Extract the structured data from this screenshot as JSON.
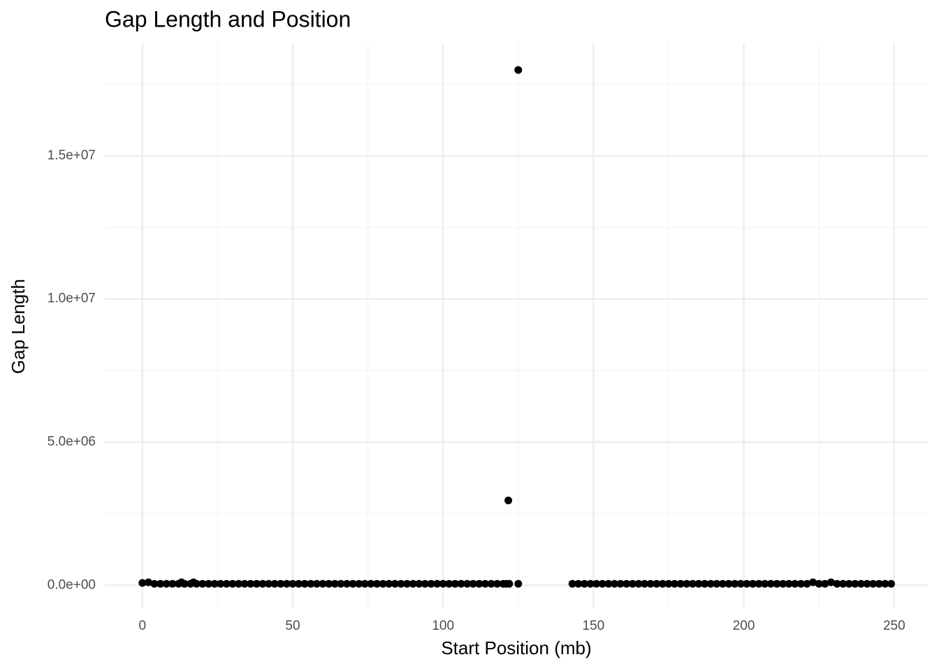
{
  "chart_data": {
    "type": "scatter",
    "title": "Gap Length and Position",
    "x_label": "Start Position (mb)",
    "y_label": "Gap Length",
    "color": "#000000",
    "grid": true,
    "xlim": [
      -12.5,
      261.2
    ],
    "ylim": [
      -800000,
      18930000
    ],
    "xticks": [
      0,
      50,
      100,
      150,
      200,
      250
    ],
    "xminor_ticks": [
      25,
      75,
      125,
      175,
      225
    ],
    "yticks": [
      {
        "value": 0,
        "label": "0.0e+00"
      },
      {
        "value": 5000000,
        "label": "5.0e+06"
      },
      {
        "value": 10000000,
        "label": "1.0e+07"
      },
      {
        "value": 15000000,
        "label": "1.5e+07"
      }
    ],
    "yminor_ticks": [
      2500000,
      7500000,
      12500000,
      17500000
    ],
    "x": [
      0,
      2,
      4,
      6,
      8,
      10,
      12,
      13,
      14,
      16,
      17,
      18,
      20,
      22,
      24,
      26,
      28,
      30,
      32,
      34,
      36,
      38,
      40,
      42,
      44,
      46,
      48,
      50,
      52,
      54,
      56,
      58,
      60,
      62,
      64,
      66,
      68,
      70,
      72,
      74,
      76,
      78,
      80,
      82,
      84,
      86,
      88,
      90,
      92,
      94,
      96,
      98,
      100,
      102,
      104,
      106,
      108,
      110,
      112,
      114,
      116,
      118,
      120,
      121,
      121.7,
      122,
      125,
      125,
      143,
      145,
      147,
      149,
      151,
      153,
      155,
      157,
      159,
      161,
      163,
      165,
      167,
      169,
      171,
      173,
      175,
      177,
      179,
      181,
      183,
      185,
      187,
      189,
      191,
      193,
      195,
      197,
      199,
      201,
      203,
      205,
      207,
      209,
      211,
      213,
      215,
      217,
      219,
      221,
      223,
      225,
      227,
      229,
      231,
      233,
      235,
      237,
      239,
      241,
      243,
      245,
      247,
      249
    ],
    "values": [
      80000,
      100000,
      50000,
      50000,
      50000,
      50000,
      50000,
      100000,
      50000,
      50000,
      100000,
      50000,
      50000,
      50000,
      50000,
      50000,
      50000,
      50000,
      50000,
      50000,
      50000,
      50000,
      50000,
      50000,
      50000,
      50000,
      50000,
      50000,
      50000,
      50000,
      50000,
      50000,
      50000,
      50000,
      50000,
      50000,
      50000,
      50000,
      50000,
      50000,
      50000,
      50000,
      50000,
      50000,
      50000,
      50000,
      50000,
      50000,
      50000,
      50000,
      50000,
      50000,
      50000,
      50000,
      50000,
      50000,
      50000,
      50000,
      50000,
      50000,
      50000,
      50000,
      50000,
      50000,
      2960000,
      50000,
      18000000,
      50000,
      50000,
      50000,
      50000,
      50000,
      50000,
      50000,
      50000,
      50000,
      50000,
      50000,
      50000,
      50000,
      50000,
      50000,
      50000,
      50000,
      50000,
      50000,
      50000,
      50000,
      50000,
      50000,
      50000,
      50000,
      50000,
      50000,
      50000,
      50000,
      50000,
      50000,
      50000,
      50000,
      50000,
      50000,
      50000,
      50000,
      50000,
      50000,
      50000,
      50000,
      100000,
      50000,
      50000,
      100000,
      50000,
      50000,
      50000,
      50000,
      50000,
      50000,
      50000,
      50000,
      50000,
      50000
    ]
  }
}
